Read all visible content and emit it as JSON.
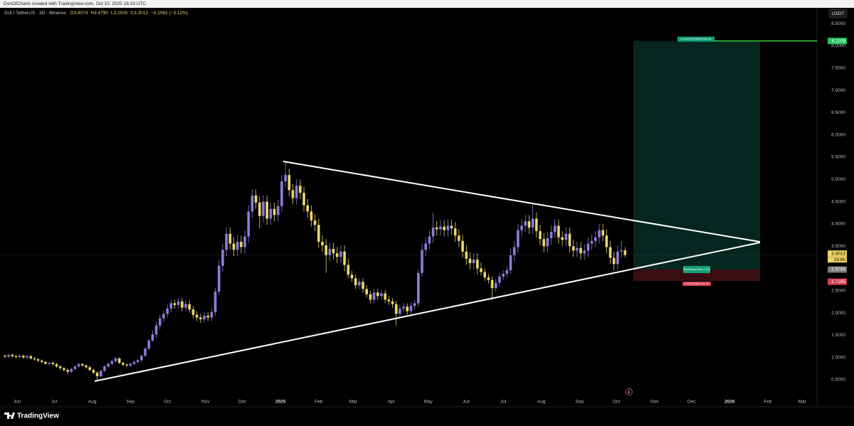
{
  "chart_data": {
    "type": "candlestick",
    "attribution": "DonOfCharts created with TradingView.com, Oct 10, 2025 16:19 UTC",
    "title": "SUI / TetherUS · 3D · Binance",
    "legend_values": [
      "O3.4074",
      "H3.4790",
      "L3.2500",
      "C3.3013",
      "−0.1062 (−3.12%)"
    ],
    "currency_label": "USDT",
    "brand": "TradingView",
    "up_color": "#8e7ad8",
    "down_color": "#e8d56d",
    "x": [
      "2024-05-22",
      "2024-05-25",
      "2024-05-28",
      "2024-05-31",
      "2024-06-03",
      "2024-06-06",
      "2024-06-09",
      "2024-06-12",
      "2024-06-15",
      "2024-06-18",
      "2024-06-21",
      "2024-06-24",
      "2024-06-27",
      "2024-06-30",
      "2024-07-03",
      "2024-07-06",
      "2024-07-09",
      "2024-07-12",
      "2024-07-15",
      "2024-07-18",
      "2024-07-21",
      "2024-07-24",
      "2024-07-27",
      "2024-07-30",
      "2024-08-02",
      "2024-08-05",
      "2024-08-08",
      "2024-08-11",
      "2024-08-14",
      "2024-08-17",
      "2024-08-20",
      "2024-08-23",
      "2024-08-26",
      "2024-08-29",
      "2024-09-01",
      "2024-09-04",
      "2024-09-07",
      "2024-09-10",
      "2024-09-13",
      "2024-09-16",
      "2024-09-19",
      "2024-09-22",
      "2024-09-25",
      "2024-09-28",
      "2024-10-01",
      "2024-10-04",
      "2024-10-07",
      "2024-10-10",
      "2024-10-13",
      "2024-10-16",
      "2024-10-19",
      "2024-10-22",
      "2024-10-25",
      "2024-10-28",
      "2024-10-31",
      "2024-11-03",
      "2024-11-06",
      "2024-11-09",
      "2024-11-12",
      "2024-11-15",
      "2024-11-18",
      "2024-11-21",
      "2024-11-24",
      "2024-11-27",
      "2024-11-30",
      "2024-12-03",
      "2024-12-06",
      "2024-12-09",
      "2024-12-12",
      "2024-12-15",
      "2024-12-18",
      "2024-12-21",
      "2024-12-24",
      "2024-12-27",
      "2024-12-30",
      "2025-01-02",
      "2025-01-05",
      "2025-01-08",
      "2025-01-11",
      "2025-01-14",
      "2025-01-17",
      "2025-01-20",
      "2025-01-23",
      "2025-01-26",
      "2025-01-29",
      "2025-02-01",
      "2025-02-04",
      "2025-02-07",
      "2025-02-10",
      "2025-02-13",
      "2025-02-16",
      "2025-02-19",
      "2025-02-22",
      "2025-02-25",
      "2025-02-28",
      "2025-03-03",
      "2025-03-06",
      "2025-03-09",
      "2025-03-12",
      "2025-03-15",
      "2025-03-18",
      "2025-03-21",
      "2025-03-24",
      "2025-03-27",
      "2025-03-30",
      "2025-04-02",
      "2025-04-05",
      "2025-04-08",
      "2025-04-11",
      "2025-04-14",
      "2025-04-17",
      "2025-04-20",
      "2025-04-23",
      "2025-04-26",
      "2025-04-29",
      "2025-05-02",
      "2025-05-05",
      "2025-05-08",
      "2025-05-11",
      "2025-05-14",
      "2025-05-17",
      "2025-05-20",
      "2025-05-23",
      "2025-05-26",
      "2025-05-29",
      "2025-06-01",
      "2025-06-04",
      "2025-06-07",
      "2025-06-10",
      "2025-06-13",
      "2025-06-16",
      "2025-06-19",
      "2025-06-22",
      "2025-06-25",
      "2025-06-28",
      "2025-07-01",
      "2025-07-04",
      "2025-07-07",
      "2025-07-10",
      "2025-07-13",
      "2025-07-16",
      "2025-07-19",
      "2025-07-22",
      "2025-07-25",
      "2025-07-28",
      "2025-07-31",
      "2025-08-03",
      "2025-08-06",
      "2025-08-09",
      "2025-08-12",
      "2025-08-15",
      "2025-08-18",
      "2025-08-21",
      "2025-08-24",
      "2025-08-27",
      "2025-08-30",
      "2025-09-02",
      "2025-09-05",
      "2025-09-08",
      "2025-09-11",
      "2025-09-14",
      "2025-09-17",
      "2025-09-20",
      "2025-09-23",
      "2025-09-26",
      "2025-09-29",
      "2025-10-02",
      "2025-10-05",
      "2025-10-08"
    ],
    "open": [
      1.04,
      1.02,
      1.06,
      1.03,
      1.01,
      1.04,
      1.0,
      1.03,
      0.98,
      0.96,
      0.93,
      0.9,
      0.86,
      0.88,
      0.85,
      0.8,
      0.76,
      0.72,
      0.68,
      0.74,
      0.8,
      0.85,
      0.82,
      0.78,
      0.72,
      0.66,
      0.58,
      0.7,
      0.8,
      0.86,
      0.92,
      0.98,
      0.88,
      0.84,
      0.82,
      0.86,
      0.9,
      0.94,
      1.04,
      1.2,
      1.38,
      1.52,
      1.72,
      1.88,
      1.98,
      2.1,
      2.22,
      2.18,
      2.26,
      2.12,
      2.2,
      2.08,
      1.96,
      1.9,
      1.86,
      1.94,
      1.9,
      2.02,
      2.48,
      3.06,
      3.42,
      3.78,
      3.56,
      3.42,
      3.6,
      3.48,
      3.72,
      4.28,
      4.64,
      4.48,
      4.18,
      4.5,
      4.12,
      4.34,
      4.2,
      4.4,
      4.96,
      5.1,
      4.76,
      4.58,
      4.86,
      4.7,
      4.42,
      4.28,
      4.08,
      3.98,
      3.6,
      3.52,
      3.3,
      3.44,
      3.34,
      3.26,
      3.38,
      3.08,
      2.86,
      2.78,
      2.62,
      2.7,
      2.54,
      2.42,
      2.3,
      2.46,
      2.38,
      2.44,
      2.3,
      2.26,
      2.2,
      1.98,
      2.1,
      2.14,
      2.04,
      2.16,
      2.22,
      2.9,
      3.42,
      3.56,
      3.72,
      3.92,
      3.88,
      3.94,
      3.86,
      3.96,
      3.9,
      3.74,
      3.62,
      3.38,
      3.22,
      3.12,
      3.2,
      3.0,
      2.92,
      2.8,
      2.74,
      2.56,
      2.68,
      2.82,
      2.88,
      2.96,
      3.3,
      3.48,
      3.86,
      3.96,
      4.06,
      3.92,
      4.12,
      3.84,
      3.66,
      3.5,
      3.68,
      3.82,
      3.96,
      3.7,
      3.64,
      3.78,
      3.5,
      3.4,
      3.46,
      3.34,
      3.4,
      3.56,
      3.62,
      3.7,
      3.86,
      3.74,
      3.48,
      3.24,
      3.1,
      3.38,
      3.4074
    ],
    "high": [
      1.07,
      1.09,
      1.09,
      1.06,
      1.07,
      1.07,
      1.06,
      1.06,
      1.01,
      0.99,
      0.96,
      0.93,
      0.91,
      0.91,
      0.88,
      0.83,
      0.79,
      0.75,
      0.77,
      0.83,
      0.88,
      0.88,
      0.85,
      0.81,
      0.75,
      0.69,
      0.73,
      0.83,
      0.89,
      0.95,
      1.01,
      1.01,
      0.91,
      0.87,
      0.89,
      0.93,
      0.97,
      1.07,
      1.23,
      1.41,
      1.6,
      1.8,
      1.96,
      2.06,
      2.18,
      2.3,
      2.3,
      2.34,
      2.34,
      2.28,
      2.28,
      2.16,
      2.04,
      1.98,
      2.02,
      2.02,
      2.1,
      2.56,
      3.2,
      3.56,
      3.92,
      3.92,
      3.7,
      3.74,
      3.74,
      3.86,
      4.42,
      4.78,
      4.78,
      4.62,
      4.64,
      4.64,
      4.48,
      4.48,
      4.54,
      5.1,
      5.38,
      5.24,
      4.9,
      5.0,
      5.0,
      4.84,
      4.56,
      4.42,
      4.22,
      4.12,
      3.74,
      3.66,
      3.58,
      3.58,
      3.48,
      3.52,
      3.52,
      3.22,
      2.94,
      2.86,
      2.78,
      2.78,
      2.62,
      2.5,
      2.54,
      2.54,
      2.52,
      2.52,
      2.38,
      2.34,
      2.28,
      2.18,
      2.22,
      2.22,
      2.24,
      2.3,
      2.98,
      3.56,
      3.7,
      3.86,
      4.25,
      4.06,
      4.08,
      4.08,
      4.1,
      4.1,
      4.04,
      3.88,
      3.76,
      3.52,
      3.36,
      3.34,
      3.34,
      3.14,
      3.0,
      2.88,
      2.82,
      2.76,
      2.9,
      2.96,
      3.04,
      3.44,
      3.62,
      4.0,
      4.1,
      4.2,
      4.2,
      4.45,
      4.26,
      3.98,
      3.8,
      3.82,
      3.96,
      4.1,
      4.1,
      3.84,
      3.92,
      3.92,
      3.64,
      3.6,
      3.6,
      3.54,
      3.7,
      3.76,
      3.84,
      4.0,
      4.0,
      3.88,
      3.62,
      3.38,
      3.52,
      3.62,
      3.479
    ],
    "low": [
      0.99,
      0.99,
      1.0,
      0.98,
      0.98,
      0.97,
      0.97,
      0.95,
      0.93,
      0.9,
      0.87,
      0.83,
      0.83,
      0.82,
      0.77,
      0.73,
      0.69,
      0.62,
      0.65,
      0.71,
      0.77,
      0.79,
      0.75,
      0.69,
      0.63,
      0.47,
      0.55,
      0.67,
      0.77,
      0.83,
      0.89,
      0.85,
      0.81,
      0.79,
      0.79,
      0.83,
      0.87,
      0.91,
      1.01,
      1.17,
      1.35,
      1.44,
      1.64,
      1.8,
      1.9,
      2.02,
      2.1,
      2.1,
      2.04,
      2.04,
      2.0,
      1.88,
      1.82,
      1.78,
      1.78,
      1.82,
      1.82,
      1.94,
      2.4,
      2.92,
      3.28,
      3.42,
      3.28,
      3.28,
      3.34,
      3.34,
      3.58,
      4.14,
      4.34,
      3.9,
      4.04,
      3.98,
      3.98,
      4.06,
      4.06,
      4.26,
      4.82,
      4.62,
      4.44,
      4.44,
      4.56,
      4.28,
      4.14,
      3.94,
      3.84,
      3.46,
      3.38,
      2.9,
      3.16,
      3.2,
      3.12,
      3.12,
      2.94,
      2.78,
      2.7,
      2.54,
      2.54,
      2.46,
      2.34,
      2.22,
      2.22,
      2.3,
      2.3,
      2.22,
      2.18,
      2.12,
      1.72,
      1.9,
      2.02,
      1.96,
      1.96,
      2.08,
      2.14,
      2.82,
      3.28,
      3.42,
      3.58,
      3.74,
      3.74,
      3.72,
      3.72,
      3.76,
      3.6,
      3.48,
      3.24,
      3.08,
      2.98,
      2.98,
      2.86,
      2.84,
      2.72,
      2.66,
      2.3,
      2.48,
      2.6,
      2.74,
      2.8,
      2.88,
      3.16,
      3.34,
      3.72,
      3.82,
      3.78,
      3.78,
      3.7,
      3.52,
      3.36,
      3.36,
      3.54,
      3.68,
      3.56,
      3.5,
      3.5,
      3.36,
      3.26,
      3.26,
      3.2,
      3.2,
      3.26,
      3.42,
      3.48,
      3.56,
      3.6,
      3.34,
      3.1,
      2.96,
      2.96,
      3.24,
      3.25
    ],
    "close": [
      1.02,
      1.06,
      1.03,
      1.01,
      1.04,
      1.0,
      1.03,
      0.98,
      0.96,
      0.93,
      0.9,
      0.86,
      0.88,
      0.85,
      0.8,
      0.76,
      0.72,
      0.68,
      0.74,
      0.8,
      0.85,
      0.82,
      0.78,
      0.72,
      0.66,
      0.58,
      0.7,
      0.8,
      0.86,
      0.92,
      0.98,
      0.88,
      0.84,
      0.82,
      0.86,
      0.9,
      0.94,
      1.04,
      1.2,
      1.38,
      1.52,
      1.72,
      1.88,
      1.98,
      2.1,
      2.22,
      2.18,
      2.26,
      2.12,
      2.2,
      2.08,
      1.96,
      1.9,
      1.86,
      1.94,
      1.9,
      2.02,
      2.48,
      3.06,
      3.42,
      3.78,
      3.56,
      3.42,
      3.6,
      3.48,
      3.72,
      4.28,
      4.64,
      4.48,
      4.18,
      4.5,
      4.12,
      4.34,
      4.2,
      4.4,
      4.96,
      5.1,
      4.76,
      4.58,
      4.86,
      4.7,
      4.42,
      4.28,
      4.08,
      3.98,
      3.6,
      3.52,
      3.3,
      3.44,
      3.34,
      3.26,
      3.38,
      3.08,
      2.86,
      2.78,
      2.62,
      2.7,
      2.54,
      2.42,
      2.3,
      2.46,
      2.38,
      2.44,
      2.3,
      2.26,
      2.2,
      1.98,
      2.1,
      2.14,
      2.04,
      2.16,
      2.22,
      2.9,
      3.42,
      3.56,
      3.72,
      3.92,
      3.88,
      3.94,
      3.86,
      3.96,
      3.9,
      3.74,
      3.62,
      3.38,
      3.22,
      3.12,
      3.2,
      3.0,
      2.92,
      2.8,
      2.74,
      2.56,
      2.68,
      2.82,
      2.88,
      2.96,
      3.3,
      3.48,
      3.86,
      3.96,
      4.06,
      3.92,
      4.12,
      3.84,
      3.66,
      3.5,
      3.68,
      3.82,
      3.96,
      3.7,
      3.64,
      3.78,
      3.5,
      3.4,
      3.46,
      3.34,
      3.4,
      3.56,
      3.62,
      3.7,
      3.86,
      3.74,
      3.48,
      3.24,
      3.1,
      3.38,
      3.4074,
      3.3013
    ],
    "xlim": [
      "2024-05-18",
      "2026-03-13"
    ],
    "xticks": [
      {
        "value": "2024-06-01",
        "label": "Jun"
      },
      {
        "value": "2024-07-01",
        "label": "Jul"
      },
      {
        "value": "2024-08-01",
        "label": "Aug"
      },
      {
        "value": "2024-09-01",
        "label": "Sep"
      },
      {
        "value": "2024-10-01",
        "label": "Oct"
      },
      {
        "value": "2024-11-01",
        "label": "Nov"
      },
      {
        "value": "2024-12-01",
        "label": "Dec"
      },
      {
        "value": "2025-01-01",
        "label": "2025"
      },
      {
        "value": "2025-02-01",
        "label": "Feb"
      },
      {
        "value": "2025-03-01",
        "label": "Mar"
      },
      {
        "value": "2025-04-01",
        "label": "Apr"
      },
      {
        "value": "2025-05-01",
        "label": "May"
      },
      {
        "value": "2025-06-01",
        "label": "Jun"
      },
      {
        "value": "2025-07-01",
        "label": "Jul"
      },
      {
        "value": "2025-08-01",
        "label": "Aug"
      },
      {
        "value": "2025-09-01",
        "label": "Sep"
      },
      {
        "value": "2025-10-01",
        "label": "Oct"
      },
      {
        "value": "2025-11-01",
        "label": "Nov"
      },
      {
        "value": "2025-12-01",
        "label": "Dec"
      },
      {
        "value": "2026-01-01",
        "label": "2026"
      },
      {
        "value": "2026-02-01",
        "label": "Feb"
      },
      {
        "value": "2026-03-01",
        "label": "Mar"
      }
    ],
    "ylim": [
      -0.075,
      8.839
    ],
    "yticks": [
      {
        "value": 0.5,
        "label": "0.5000"
      },
      {
        "value": 1,
        "label": "1.0000"
      },
      {
        "value": 1.5,
        "label": "1.5000"
      },
      {
        "value": 2,
        "label": "2.0000"
      },
      {
        "value": 2.5,
        "label": "2.5000"
      },
      {
        "value": 3,
        "label": "3.0000"
      },
      {
        "value": 3.5,
        "label": "3.5000"
      },
      {
        "value": 4,
        "label": "4.0000"
      },
      {
        "value": 4.5,
        "label": "4.5000"
      },
      {
        "value": 5,
        "label": "5.0000"
      },
      {
        "value": 5.5,
        "label": "5.5000"
      },
      {
        "value": 6,
        "label": "6.0000"
      },
      {
        "value": 6.5,
        "label": "6.5000"
      },
      {
        "value": 7,
        "label": "7.0000"
      },
      {
        "value": 7.5,
        "label": "7.5000"
      },
      {
        "value": 8,
        "label": "8.0000"
      },
      {
        "value": 8.5,
        "label": "8.5000"
      }
    ],
    "grid": false,
    "target_price": 8.1108,
    "entry_price": 2.9764,
    "stop_price": 2.7185,
    "last_price": 3.3013,
    "countdown": "2d 8h",
    "position_labels": {
      "target": "5.1344 (172.50%) 5134.40",
      "entry": "Risk/Reward Ratio: 19.91",
      "stop": "0.2579 (8.66%) 257.90"
    }
  }
}
